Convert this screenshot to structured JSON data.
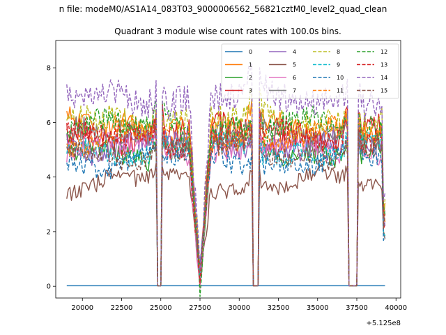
{
  "chart_data": {
    "type": "line",
    "suptitle": "n file: modeM0/AS1A14_083T03_9000006562_56821cztM0_level2_quad_clean",
    "title": "Quadrant 3 module wise count rates with 100.0s bins.",
    "xlabel": "",
    "ylabel": "",
    "x_offset_label": "+5.125e8",
    "xlim": [
      18300,
      40300
    ],
    "ylim": [
      -0.43,
      9.0
    ],
    "xticks": [
      20000,
      22500,
      25000,
      27500,
      30000,
      32500,
      35000,
      37500,
      40000
    ],
    "xtick_labels": [
      "20000",
      "22500",
      "25000",
      "27500",
      "30000",
      "32500",
      "35000",
      "37500",
      "40000"
    ],
    "yticks": [
      0,
      2,
      4,
      6,
      8
    ],
    "ytick_labels": [
      "0",
      "2",
      "4",
      "6",
      "8"
    ],
    "grid": false,
    "legend_position": "top-right",
    "legend_columns": 4,
    "x_start": 19000,
    "x_end": 39300,
    "bin": 100,
    "gaps": [
      [
        24800,
        25000
      ],
      [
        30900,
        31200
      ],
      [
        37000,
        37500
      ]
    ],
    "dips": [
      [
        27500,
        0.4
      ]
    ],
    "series": [
      {
        "name": "0",
        "color": "#1f77b4",
        "dash": "solid",
        "level": 0.02
      },
      {
        "name": "1",
        "color": "#ff7f0e",
        "dash": "solid",
        "level": 5.8
      },
      {
        "name": "2",
        "color": "#2ca02c",
        "dash": "solid",
        "level": 5.0
      },
      {
        "name": "3",
        "color": "#d62728",
        "dash": "solid",
        "level": 5.6
      },
      {
        "name": "4",
        "color": "#9467bd",
        "dash": "solid",
        "level": 5.2
      },
      {
        "name": "5",
        "color": "#8c564b",
        "dash": "solid",
        "level": 3.8
      },
      {
        "name": "6",
        "color": "#e377c2",
        "dash": "solid",
        "level": 5.0
      },
      {
        "name": "7",
        "color": "#7f7f7f",
        "dash": "solid",
        "level": 5.5
      },
      {
        "name": "8",
        "color": "#bcbd22",
        "dash": "dashed",
        "level": 6.1
      },
      {
        "name": "9",
        "color": "#17becf",
        "dash": "dashed",
        "level": 5.0
      },
      {
        "name": "10",
        "color": "#1f77b4",
        "dash": "dashed",
        "level": 4.6
      },
      {
        "name": "11",
        "color": "#ff7f0e",
        "dash": "dashed",
        "level": 5.5
      },
      {
        "name": "12",
        "color": "#2ca02c",
        "dash": "dashed",
        "level": 5.8
      },
      {
        "name": "13",
        "color": "#d62728",
        "dash": "dashed",
        "level": 5.4
      },
      {
        "name": "14",
        "color": "#9467bd",
        "dash": "dashed",
        "level": 6.9
      },
      {
        "name": "15",
        "color": "#8c564b",
        "dash": "dashed",
        "level": 4.9
      }
    ]
  }
}
